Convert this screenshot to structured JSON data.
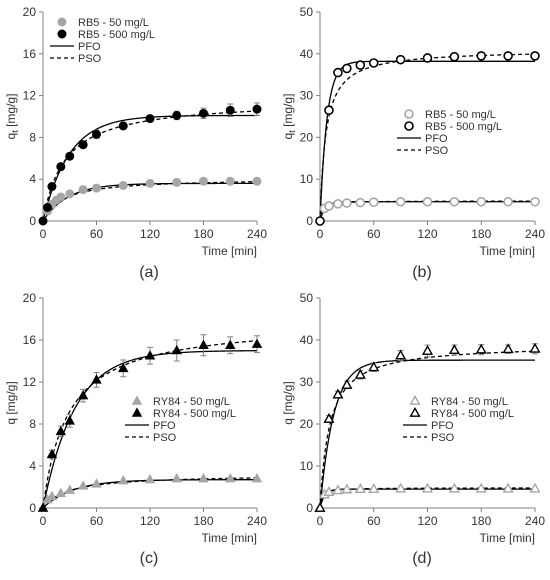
{
  "chart_data": [
    {
      "type": "scatter",
      "panel": "a",
      "caption": "(a)",
      "xlabel": "Time [min]",
      "ylabel": "q",
      "ylabel_sub": "t",
      "ylabel_unit": " [mg/g]",
      "xlim": [
        0,
        240
      ],
      "ylim": [
        0,
        20
      ],
      "xticks": [
        0,
        60,
        120,
        180,
        240
      ],
      "yticks": [
        0,
        4,
        8,
        12,
        16,
        20
      ],
      "legend_position": "top-left",
      "legend": [
        "RB5 - 50 mg/L",
        "RB5 - 500 mg/L",
        "PFO",
        "PSO"
      ],
      "series": [
        {
          "name": "RB5 - 50 mg/L",
          "marker": "circle",
          "filled": true,
          "color": "#a6a6a6",
          "x": [
            0,
            5,
            10,
            15,
            20,
            30,
            45,
            60,
            90,
            120,
            150,
            180,
            210,
            240
          ],
          "y": [
            0,
            0.95,
            1.6,
            2.0,
            2.3,
            2.6,
            3.0,
            3.15,
            3.4,
            3.6,
            3.7,
            3.8,
            3.8,
            3.8
          ],
          "err": [
            0,
            0,
            0,
            0,
            0,
            0,
            0,
            0,
            0,
            0,
            0.15,
            0.15,
            0.15,
            0.15
          ]
        },
        {
          "name": "RB5 - 500 mg/L",
          "marker": "circle",
          "filled": true,
          "color": "#000000",
          "x": [
            0,
            5,
            10,
            20,
            30,
            45,
            60,
            90,
            120,
            150,
            180,
            210,
            240
          ],
          "y": [
            0,
            1.3,
            3.3,
            5.2,
            6.2,
            7.3,
            8.3,
            9.1,
            9.8,
            10.1,
            10.3,
            10.6,
            10.7
          ],
          "err": [
            0,
            0,
            0,
            0,
            0.3,
            0.3,
            0.4,
            0.3,
            0.3,
            0.4,
            0.5,
            0.6,
            0.6
          ]
        }
      ],
      "models": [
        {
          "name": "PFO",
          "style": "solid",
          "curves": [
            {
              "qe": 3.6,
              "k": 0.036
            },
            {
              "qe": 10.1,
              "k": 0.034
            }
          ]
        },
        {
          "name": "PSO",
          "style": "dashed",
          "curves": [
            {
              "qe": 4.1,
              "k": 0.0112
            },
            {
              "qe": 11.6,
              "k": 0.0035
            }
          ]
        }
      ]
    },
    {
      "type": "scatter",
      "panel": "b",
      "caption": "(b)",
      "xlabel": "Time [min]",
      "ylabel": "q",
      "ylabel_sub": "t",
      "ylabel_unit": " [mg/g]",
      "xlim": [
        0,
        240
      ],
      "ylim": [
        0,
        50
      ],
      "xticks": [
        0,
        60,
        120,
        180,
        240
      ],
      "yticks": [
        0,
        10,
        20,
        30,
        40,
        50
      ],
      "legend_position": "center-right",
      "legend": [
        "RB5 - 50 mg/L",
        "RB5 - 500 mg/L",
        "PFO",
        "PSO"
      ],
      "series": [
        {
          "name": "RB5 - 50 mg/L",
          "marker": "circle",
          "filled": false,
          "color": "#a6a6a6",
          "x": [
            0,
            5,
            10,
            20,
            30,
            45,
            60,
            90,
            120,
            150,
            180,
            210,
            240
          ],
          "y": [
            0,
            3.0,
            3.6,
            4.1,
            4.3,
            4.4,
            4.5,
            4.6,
            4.6,
            4.6,
            4.6,
            4.6,
            4.6
          ],
          "err": [
            0,
            0,
            0,
            0,
            0,
            0,
            0,
            0,
            0,
            0,
            0,
            0,
            0
          ]
        },
        {
          "name": "RB5 - 500 mg/L",
          "marker": "circle",
          "filled": false,
          "color": "#000000",
          "x": [
            0,
            10,
            20,
            30,
            45,
            60,
            90,
            120,
            150,
            180,
            210,
            240
          ],
          "y": [
            0,
            26.5,
            35.5,
            36.5,
            37.3,
            37.8,
            38.6,
            39.0,
            39.3,
            39.5,
            39.5,
            39.5
          ],
          "err": [
            0,
            0.6,
            0.6,
            0.6,
            0.8,
            0.8,
            0.8,
            0.8,
            0.8,
            0.8,
            0.8,
            0.8
          ]
        }
      ],
      "models": [
        {
          "name": "PFO",
          "style": "solid",
          "curves": [
            {
              "qe": 4.6,
              "k": 0.18
            },
            {
              "qe": 38.2,
              "k": 0.13
            }
          ]
        },
        {
          "name": "PSO",
          "style": "dashed",
          "curves": [
            {
              "qe": 4.8,
              "k": 0.09
            },
            {
              "qe": 41.0,
              "k": 0.0038
            }
          ]
        }
      ]
    },
    {
      "type": "scatter",
      "panel": "c",
      "caption": "(c)",
      "xlabel": "Time [min]",
      "ylabel": "q [mg/g]",
      "xlim": [
        0,
        240
      ],
      "ylim": [
        0,
        20
      ],
      "xticks": [
        0,
        60,
        120,
        180,
        240
      ],
      "yticks": [
        0,
        4,
        8,
        12,
        16,
        20
      ],
      "legend_position": "center-right",
      "legend": [
        "RY84 - 50 mg/L",
        "RY84 - 500 mg/L",
        "PFO",
        "PSO"
      ],
      "series": [
        {
          "name": "RY84 - 50 mg/L",
          "marker": "triangle",
          "filled": true,
          "color": "#a6a6a6",
          "x": [
            0,
            5,
            10,
            20,
            30,
            45,
            60,
            90,
            120,
            150,
            180,
            210,
            240
          ],
          "y": [
            0,
            0.8,
            1.1,
            1.4,
            1.7,
            2.1,
            2.3,
            2.6,
            2.7,
            2.8,
            2.8,
            2.8,
            2.8
          ],
          "err": [
            0,
            0,
            0,
            0,
            0,
            0,
            0,
            0,
            0,
            0,
            0,
            0,
            0
          ]
        },
        {
          "name": "RY84 - 500 mg/L",
          "marker": "triangle",
          "filled": true,
          "color": "#000000",
          "x": [
            0,
            10,
            20,
            30,
            45,
            60,
            90,
            120,
            150,
            180,
            210,
            240
          ],
          "y": [
            0,
            5.1,
            7.3,
            8.3,
            10.7,
            12.2,
            13.3,
            14.5,
            15.0,
            15.5,
            15.5,
            15.6
          ],
          "err": [
            0,
            0.4,
            0.5,
            0.6,
            0.6,
            0.7,
            0.8,
            0.8,
            1.0,
            1.0,
            0.8,
            0.8
          ]
        }
      ],
      "models": [
        {
          "name": "PFO",
          "style": "solid",
          "curves": [
            {
              "qe": 2.7,
              "k": 0.03
            },
            {
              "qe": 15.0,
              "k": 0.028
            }
          ]
        },
        {
          "name": "PSO",
          "style": "dashed",
          "curves": [
            {
              "qe": 3.2,
              "k": 0.0112
            },
            {
              "qe": 17.8,
              "k": 0.002
            }
          ]
        }
      ]
    },
    {
      "type": "scatter",
      "panel": "d",
      "caption": "(d)",
      "xlabel": "Time [min]",
      "ylabel": "q [mg/g]",
      "xlim": [
        0,
        240
      ],
      "ylim": [
        0,
        50
      ],
      "xticks": [
        0,
        60,
        120,
        180,
        240
      ],
      "yticks": [
        0,
        10,
        20,
        30,
        40,
        50
      ],
      "legend_position": "center-right",
      "legend": [
        "RY84 - 50 mg/L",
        "RY84 - 500 mg/L",
        "PFO",
        "PSO"
      ],
      "series": [
        {
          "name": "RY84 - 50 mg/L",
          "marker": "triangle",
          "filled": false,
          "color": "#a6a6a6",
          "x": [
            0,
            5,
            10,
            20,
            30,
            45,
            60,
            90,
            120,
            150,
            180,
            210,
            240
          ],
          "y": [
            0,
            3.2,
            3.8,
            4.2,
            4.4,
            4.5,
            4.5,
            4.6,
            4.6,
            4.6,
            4.6,
            4.6,
            4.6
          ],
          "err": [
            0,
            0,
            0,
            0,
            0,
            0,
            0,
            0,
            0,
            0,
            0,
            0,
            0
          ]
        },
        {
          "name": "RY84 - 500 mg/L",
          "marker": "triangle",
          "filled": false,
          "color": "#000000",
          "x": [
            0,
            10,
            20,
            30,
            45,
            60,
            90,
            120,
            150,
            180,
            210,
            240
          ],
          "y": [
            0,
            21.2,
            27.0,
            29.3,
            31.7,
            33.5,
            36.3,
            37.4,
            37.6,
            37.7,
            37.8,
            37.9
          ],
          "err": [
            0,
            0.8,
            0.8,
            0.9,
            1.0,
            1.0,
            1.2,
            1.4,
            1.2,
            1.2,
            1.0,
            1.2
          ]
        }
      ],
      "models": [
        {
          "name": "PFO",
          "style": "solid",
          "curves": [
            {
              "qe": 4.5,
              "k": 0.2
            },
            {
              "qe": 35.2,
              "k": 0.065
            }
          ]
        },
        {
          "name": "PSO",
          "style": "dashed",
          "curves": [
            {
              "qe": 4.8,
              "k": 0.09
            },
            {
              "qe": 39.0,
              "k": 0.0024
            }
          ]
        }
      ]
    }
  ]
}
